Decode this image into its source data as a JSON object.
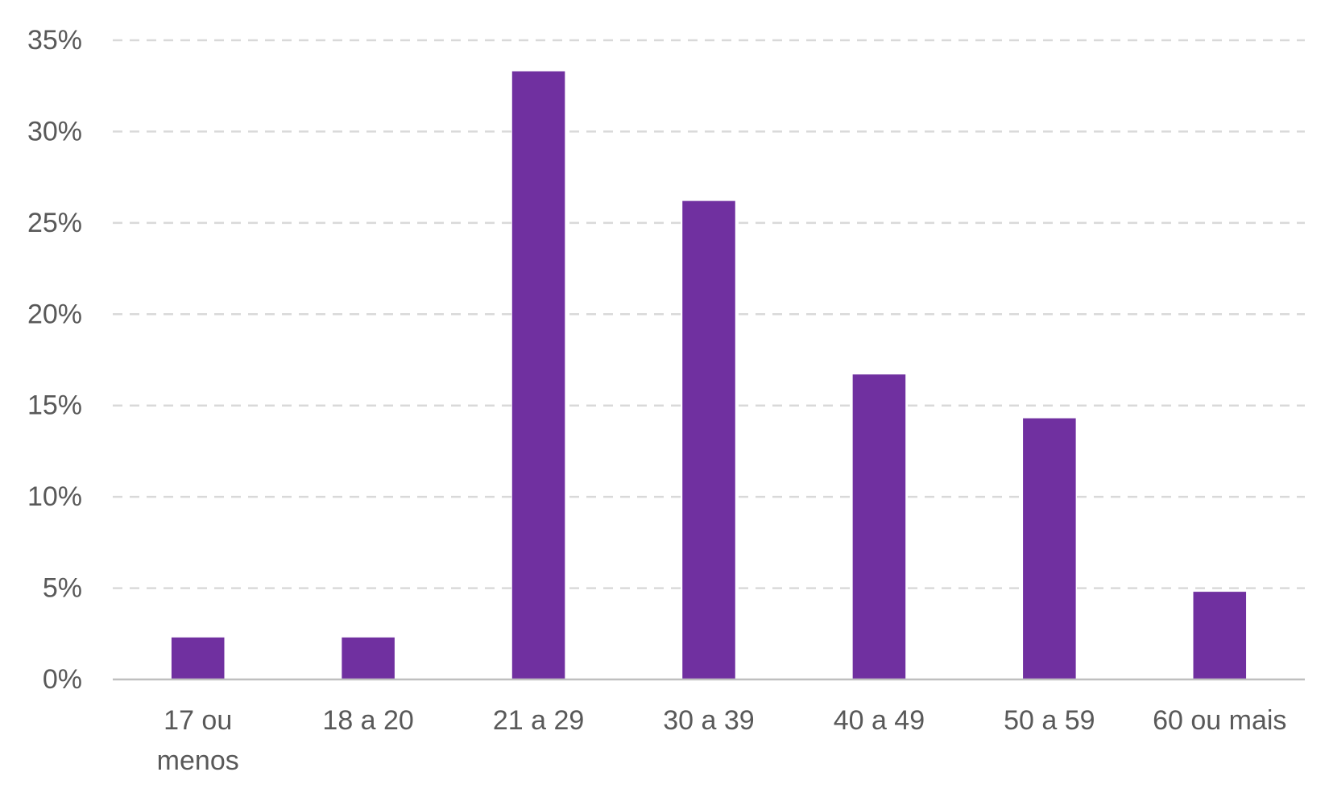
{
  "chart_data": {
    "type": "bar",
    "title": "",
    "xlabel": "",
    "ylabel": "",
    "categories": [
      [
        "17 ou",
        "menos"
      ],
      [
        "18 a 20"
      ],
      [
        "21 a 29"
      ],
      [
        "30 a 39"
      ],
      [
        "40 a 49"
      ],
      [
        "50 a 59"
      ],
      [
        "60 ou mais"
      ]
    ],
    "values": [
      2.3,
      2.3,
      33.3,
      26.2,
      16.7,
      14.3,
      4.8
    ],
    "ylim": [
      0,
      35
    ],
    "yticks": [
      0,
      5,
      10,
      15,
      20,
      25,
      30,
      35
    ],
    "ytick_labels": [
      "0%",
      "5%",
      "10%",
      "15%",
      "20%",
      "25%",
      "30%",
      "35%"
    ],
    "grid": true,
    "legend": "none",
    "colors": {
      "bar": "#7030A0",
      "grid": "#D9D9D9",
      "axis": "#BFBFBF",
      "text": "#595959"
    }
  }
}
